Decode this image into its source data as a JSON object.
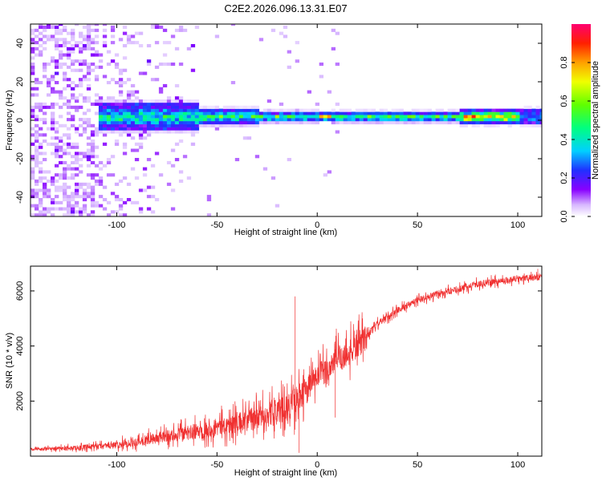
{
  "figure_title": "C2E2.2026.096.13.31.E07",
  "colors": {
    "snr_line": "#f03030",
    "frame": "#000000",
    "background": "#ffffff"
  },
  "chart_data": [
    {
      "type": "heatmap",
      "title": "C2E2.2026.096.13.31.E07",
      "xlabel": "Height of straight line (km)",
      "ylabel": "Frequency (Hz)",
      "xlim": [
        -143,
        112
      ],
      "ylim": [
        -50,
        50
      ],
      "xticks": [
        -100,
        -50,
        0,
        50,
        100
      ],
      "yticks": [
        -40,
        -20,
        0,
        20,
        40
      ],
      "colorbar": {
        "label": "Normalized spectral amplitude",
        "range": [
          0,
          1
        ],
        "ticks": [
          0.0,
          0.2,
          0.4,
          0.6,
          0.8
        ]
      },
      "ridge": {
        "frequency_hz": 1,
        "segments": [
          {
            "x": [
              -110,
              -60
            ],
            "halfwidth_hz": 5,
            "peak_amplitude": 0.5
          },
          {
            "x": [
              -60,
              -30
            ],
            "halfwidth_hz": 3,
            "peak_amplitude": 0.55
          },
          {
            "x": [
              -30,
              0
            ],
            "halfwidth_hz": 2,
            "peak_amplitude": 0.6
          },
          {
            "x": [
              0,
              5
            ],
            "halfwidth_hz": 1.5,
            "peak_amplitude": 1.0
          },
          {
            "x": [
              5,
              70
            ],
            "halfwidth_hz": 2,
            "peak_amplitude": 0.55
          },
          {
            "x": [
              70,
              100
            ],
            "halfwidth_hz": 2.5,
            "peak_amplitude": 0.85
          },
          {
            "x": [
              100,
              112
            ],
            "halfwidth_hz": 3,
            "peak_amplitude": 0.35
          }
        ],
        "note": "broadband scattered energy (amplitude 0.05-0.25) below about -60 km"
      }
    },
    {
      "type": "line",
      "xlabel": "Height of straight line (km)",
      "ylabel": "SNR (10 * v/v)",
      "xlim": [
        -143,
        112
      ],
      "ylim": [
        0,
        6900
      ],
      "xticks": [
        -100,
        -50,
        0,
        50,
        100
      ],
      "yticks": [
        2000,
        4000,
        6000
      ],
      "series": [
        {
          "name": "SNR",
          "x_trend": [
            -143,
            -120,
            -100,
            -80,
            -60,
            -40,
            -20,
            -10,
            0,
            5,
            10,
            15,
            20,
            25,
            30,
            40,
            50,
            60,
            70,
            80,
            90,
            100,
            112
          ],
          "trend": [
            250,
            300,
            400,
            650,
            900,
            1200,
            1600,
            2000,
            2900,
            3100,
            3600,
            3700,
            4000,
            4400,
            4800,
            5300,
            5650,
            5900,
            6050,
            6250,
            6350,
            6450,
            6500
          ],
          "noise_band": [
            -143,
            -10,
            1200
          ],
          "notable_points": [
            {
              "x": -11,
              "y": 5800
            },
            {
              "x": -9,
              "y": 120
            },
            {
              "x": 9,
              "y": 1400
            },
            {
              "x": 110,
              "y": 6800
            }
          ]
        }
      ]
    }
  ]
}
